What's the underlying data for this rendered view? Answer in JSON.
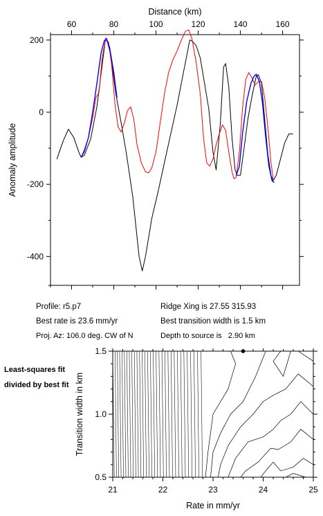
{
  "chart_data": [
    {
      "type": "line",
      "xlabel": "Distance (km)",
      "ylabel": "Anomaly amplitude",
      "xlim": [
        50,
        168
      ],
      "ylim": [
        -480,
        215
      ],
      "x_ticks": [
        60,
        80,
        100,
        120,
        140,
        160
      ],
      "y_ticks": [
        200,
        0,
        -200,
        -400
      ],
      "grid": false,
      "series": [
        {
          "color": "#000000",
          "points": [
            [
              53,
              -130
            ],
            [
              56,
              -80
            ],
            [
              58.5,
              -47
            ],
            [
              61,
              -70
            ],
            [
              63.5,
              -112
            ],
            [
              64.5,
              -125
            ],
            [
              66,
              -120
            ],
            [
              69,
              -75
            ],
            [
              72,
              15
            ],
            [
              74.5,
              130
            ],
            [
              76,
              200
            ],
            [
              77,
              195
            ],
            [
              78.5,
              160
            ],
            [
              81,
              50
            ],
            [
              83.5,
              -30
            ],
            [
              86,
              -115
            ],
            [
              89,
              -235
            ],
            [
              92,
              -400
            ],
            [
              93.5,
              -440
            ],
            [
              95,
              -400
            ],
            [
              97,
              -330
            ],
            [
              98,
              -295
            ],
            [
              101,
              -220
            ],
            [
              104,
              -140
            ],
            [
              107,
              -60
            ],
            [
              110,
              20
            ],
            [
              113,
              110
            ],
            [
              116,
              200
            ],
            [
              117,
              198
            ],
            [
              119,
              185
            ],
            [
              121,
              150
            ],
            [
              123,
              80
            ],
            [
              125,
              10
            ],
            [
              127,
              -110
            ],
            [
              128.5,
              -160
            ],
            [
              130.5,
              -30
            ],
            [
              132,
              125
            ],
            [
              133,
              135
            ],
            [
              134.5,
              70
            ],
            [
              136,
              -70
            ],
            [
              137.5,
              -160
            ],
            [
              138.5,
              -175
            ],
            [
              140,
              -175
            ],
            [
              141.5,
              -110
            ],
            [
              143.5,
              -20
            ],
            [
              145.5,
              45
            ],
            [
              147.5,
              100
            ],
            [
              148.5,
              104
            ],
            [
              150,
              80
            ],
            [
              151.5,
              -20
            ],
            [
              153,
              -115
            ],
            [
              154.5,
              -175
            ],
            [
              155.5,
              -190
            ],
            [
              157,
              -175
            ],
            [
              159,
              -130
            ],
            [
              161,
              -85
            ],
            [
              163,
              -60
            ],
            [
              165,
              -60
            ]
          ]
        },
        {
          "color": "#ff0000",
          "points": [
            [
              64.5,
              -125
            ],
            [
              66,
              -105
            ],
            [
              68,
              -70
            ],
            [
              70,
              -15
            ],
            [
              71.5,
              40
            ],
            [
              73,
              55
            ],
            [
              74.5,
              150
            ],
            [
              76,
              200
            ],
            [
              77.5,
              195
            ],
            [
              79,
              130
            ],
            [
              80.5,
              25
            ],
            [
              82,
              -40
            ],
            [
              83.5,
              -55
            ],
            [
              85,
              -30
            ],
            [
              86.5,
              5
            ],
            [
              88,
              15
            ],
            [
              89.5,
              -20
            ],
            [
              91,
              -90
            ],
            [
              93,
              -140
            ],
            [
              95,
              -165
            ],
            [
              96.5,
              -168
            ],
            [
              98,
              -155
            ],
            [
              100,
              -110
            ],
            [
              102,
              -30
            ],
            [
              104,
              50
            ],
            [
              106,
              110
            ],
            [
              108,
              145
            ],
            [
              110,
              170
            ],
            [
              112,
              200
            ],
            [
              114,
              225
            ],
            [
              115.5,
              228
            ],
            [
              117,
              205
            ],
            [
              119,
              140
            ],
            [
              121,
              50
            ],
            [
              122.5,
              -70
            ],
            [
              124,
              -140
            ],
            [
              125.5,
              -150
            ],
            [
              127,
              -130
            ],
            [
              128.5,
              -90
            ],
            [
              130,
              -60
            ],
            [
              131.5,
              -35
            ],
            [
              133,
              -50
            ],
            [
              134.5,
              -110
            ],
            [
              136,
              -165
            ],
            [
              137,
              -185
            ],
            [
              138,
              -180
            ],
            [
              139.5,
              -110
            ],
            [
              141,
              10
            ],
            [
              142.5,
              90
            ],
            [
              144,
              110
            ],
            [
              145.5,
              95
            ],
            [
              147,
              75
            ],
            [
              148.5,
              85
            ],
            [
              150,
              85
            ],
            [
              151.5,
              40
            ],
            [
              153,
              -40
            ],
            [
              154.5,
              -140
            ],
            [
              155.5,
              -185
            ]
          ]
        },
        {
          "color": "#0000ff",
          "points": [
            [
              64.5,
              -125
            ],
            [
              66,
              -110
            ],
            [
              68,
              -70
            ],
            [
              70,
              0
            ],
            [
              72,
              80
            ],
            [
              74,
              165
            ],
            [
              75.5,
              198
            ],
            [
              76.5,
              205
            ],
            [
              78,
              180
            ],
            [
              80,
              110
            ],
            [
              81.5,
              40
            ],
            [
              138,
              -175
            ],
            [
              139.5,
              -150
            ],
            [
              141,
              -60
            ],
            [
              143,
              30
            ],
            [
              145,
              80
            ],
            [
              146.5,
              100
            ],
            [
              147.5,
              105
            ],
            [
              149,
              85
            ],
            [
              150.5,
              25
            ],
            [
              152,
              -70
            ],
            [
              153.5,
              -150
            ],
            [
              155,
              -190
            ],
            [
              156,
              -195
            ]
          ]
        }
      ]
    },
    {
      "type": "contour",
      "xlabel": "Rate in mm/yr",
      "ylabel": "Transition width in km",
      "xlim": [
        21,
        25
      ],
      "ylim": [
        0.5,
        1.5
      ],
      "x_ticks": [
        "21",
        "22",
        "23",
        "24",
        "25"
      ],
      "y_ticks": [
        "0.5",
        "1.0",
        "1.5"
      ],
      "best_fit_point": [
        23.6,
        1.5
      ]
    }
  ],
  "info": {
    "profile": "Profile: r5.p7",
    "best_rate": "Best rate is 23.6 mm/yr",
    "proj_az": "Proj. Az: 106.0 deg. CW of N",
    "ridge_xing": "Ridge Xing is 27.55 315.93",
    "best_width": "Best transition width is 1.5 km",
    "depth": "Depth to source is",
    "depth_value": "2.90 km"
  },
  "side_note": "Least-squares fit divided by best fit"
}
